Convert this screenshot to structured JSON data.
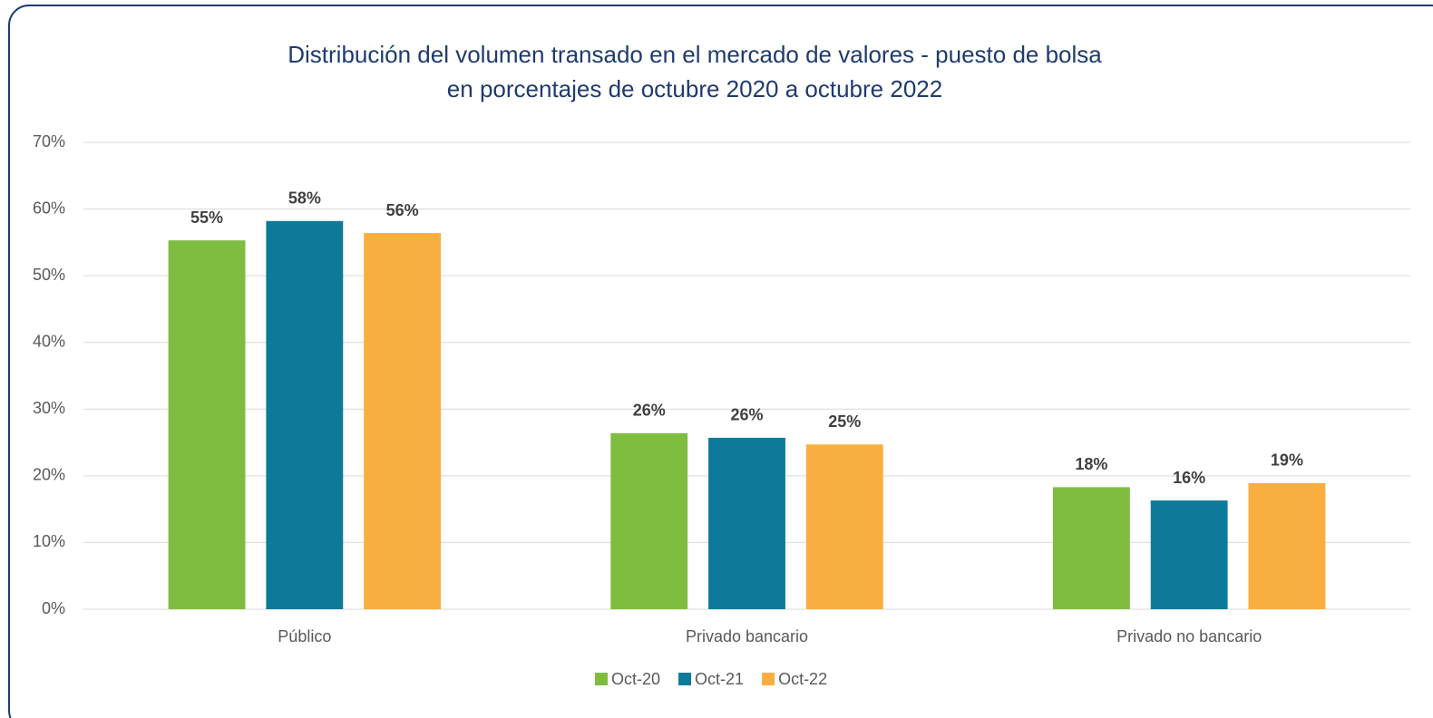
{
  "chart_data": {
    "type": "bar",
    "title": "Distribución del volumen transado en el mercado de valores - puesto de bolsa",
    "subtitle": "en porcentajes de octubre 2020 a octubre 2022",
    "categories": [
      "Público",
      "Privado bancario",
      "Privado no bancario"
    ],
    "series": [
      {
        "name": "Oct-20",
        "color": "#7fbd41",
        "values": [
          55.3,
          26.4,
          18.3
        ],
        "value_labels": [
          "55%",
          "26%",
          "18%"
        ]
      },
      {
        "name": "Oct-21",
        "color": "#0e7a9b",
        "values": [
          58.2,
          25.7,
          16.3
        ],
        "value_labels": [
          "58%",
          "26%",
          "16%"
        ]
      },
      {
        "name": "Oct-22",
        "color": "#f9ae40",
        "values": [
          56.4,
          24.7,
          18.9
        ],
        "value_labels": [
          "56%",
          "25%",
          "19%"
        ]
      }
    ],
    "ylim": [
      0,
      70
    ],
    "yticks": [
      {
        "value": 0,
        "label": "0%"
      },
      {
        "value": 10,
        "label": "10%"
      },
      {
        "value": 20,
        "label": "20%"
      },
      {
        "value": 30,
        "label": "30%"
      },
      {
        "value": 40,
        "label": "40%"
      },
      {
        "value": 50,
        "label": "50%"
      },
      {
        "value": 60,
        "label": "60%"
      },
      {
        "value": 70,
        "label": "70%"
      }
    ],
    "grid": true,
    "legend": "bottom"
  }
}
